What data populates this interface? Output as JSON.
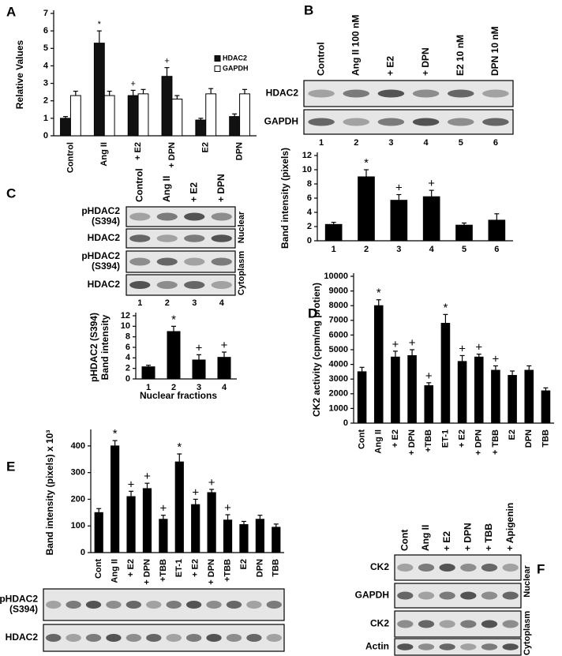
{
  "panel_labels": [
    "A",
    "B",
    "C",
    "D",
    "E",
    "F"
  ],
  "chart_data": [
    {
      "type": "bar",
      "y_label": "Relative Values",
      "categories": [
        "Control",
        "Ang II",
        "+ E2",
        "+ DPN",
        "E2",
        "DPN"
      ],
      "series": [
        {
          "name": "HDAC2",
          "color": "#111111",
          "values": [
            1,
            5.3,
            2.3,
            3.4,
            0.9,
            1.1
          ],
          "errors": [
            0.1,
            0.7,
            0.3,
            0.5,
            0.1,
            0.15
          ],
          "annotations": [
            null,
            "*",
            "+",
            "+",
            null,
            null
          ]
        },
        {
          "name": "GAPDH",
          "color": "#ffffff",
          "values": [
            2.3,
            2.3,
            2.4,
            2.1,
            2.4,
            2.4
          ],
          "errors": [
            0.25,
            0.25,
            0.25,
            0.2,
            0.3,
            0.25
          ],
          "annotations": [
            null,
            null,
            null,
            null,
            null,
            null
          ]
        }
      ],
      "ylim": [
        0,
        7
      ],
      "yticks": [
        0,
        1,
        2,
        3,
        4,
        5,
        6,
        7
      ]
    },
    {
      "type": "bar",
      "y_label": "Band intensity (pixels)",
      "categories": [
        "1",
        "2",
        "3",
        "4",
        "5",
        "6"
      ],
      "series": [
        {
          "color": "#000000",
          "values": [
            2.3,
            9,
            5.7,
            6.2,
            2.2,
            2.9
          ],
          "errors": [
            0.3,
            1,
            0.8,
            0.9,
            0.3,
            0.9
          ],
          "annotations": [
            null,
            "*",
            "+",
            "+",
            null,
            null
          ]
        }
      ],
      "ylim": [
        0,
        12
      ],
      "yticks": [
        0,
        2,
        4,
        6,
        8,
        10,
        12
      ]
    },
    {
      "type": "bar",
      "y_label": [
        "pHDAC2 (S394)",
        "Band intensity"
      ],
      "x_label": "Nuclear fractions",
      "categories": [
        "1",
        "2",
        "3",
        "4"
      ],
      "series": [
        {
          "color": "#000000",
          "values": [
            2.3,
            9,
            3.6,
            4.1
          ],
          "errors": [
            0.3,
            1,
            1,
            1
          ],
          "annotations": [
            null,
            "*",
            "+",
            "+"
          ]
        }
      ],
      "ylim": [
        0,
        12
      ],
      "yticks": [
        0,
        2,
        4,
        6,
        8,
        10,
        12
      ]
    },
    {
      "type": "bar",
      "y_label": "CK2 activity (cpm/mg protien)",
      "categories": [
        "Cont",
        "Ang II",
        "+ E2",
        "+ DPN",
        "+TBB",
        "ET-1",
        "+ E2",
        "+ DPN",
        "+ TBB",
        "E2",
        "DPN",
        "TBB"
      ],
      "series": [
        {
          "color": "#000000",
          "values": [
            3500,
            8000,
            4500,
            4600,
            2550,
            6800,
            4200,
            4500,
            3600,
            3250,
            3600,
            2200
          ],
          "errors": [
            300,
            400,
            400,
            400,
            200,
            600,
            400,
            200,
            300,
            300,
            300,
            200
          ],
          "annotations": [
            null,
            "*",
            "+",
            "+",
            "+",
            "*",
            "+",
            "+",
            "+",
            null,
            null,
            null
          ]
        }
      ],
      "ylim": [
        0,
        10000
      ],
      "yticks": [
        0,
        1000,
        2000,
        3000,
        4000,
        5000,
        6000,
        7000,
        8000,
        9000,
        10000
      ]
    },
    {
      "type": "bar",
      "y_label": "Band intensity (pixels) x 10³",
      "categories": [
        "Cont",
        "Ang II",
        "+ E2",
        "+ DPN",
        "+TBB",
        "ET-1",
        "+ E2",
        "+ DPN",
        "+TBB",
        "E2",
        "DPN",
        "TBB"
      ],
      "series": [
        {
          "color": "#000000",
          "values": [
            150,
            400,
            210,
            240,
            125,
            340,
            180,
            225,
            122,
            105,
            125,
            95
          ],
          "errors": [
            15,
            20,
            20,
            20,
            15,
            30,
            20,
            12,
            20,
            12,
            15,
            12
          ],
          "annotations": [
            null,
            "*",
            "+",
            "+",
            "+",
            "*",
            "+",
            "+",
            "+",
            null,
            null,
            null
          ]
        }
      ],
      "ylim": [
        0,
        450
      ],
      "yticks": [
        0,
        100,
        200,
        300,
        400
      ]
    }
  ],
  "blots": {
    "B": {
      "lanes": [
        "Control",
        "Ang II 100 nM",
        "+ E2",
        "+ DPN",
        "E2 10 nM",
        "DPN 10 nM"
      ],
      "rows": [
        "HDAC2",
        "GAPDH"
      ],
      "lane_numbers": [
        "1",
        "2",
        "3",
        "4",
        "5",
        "6"
      ]
    },
    "C": {
      "lanes": [
        "Control",
        "Ang II",
        "+ E2",
        "+ DPN"
      ],
      "rows": [
        [
          "pHDAC2",
          "(S394)"
        ],
        "HDAC2",
        [
          "pHDAC2",
          "(S394)"
        ],
        "HDAC2"
      ],
      "groups": [
        "Nuclear",
        "Cytoplasm"
      ],
      "lane_numbers": [
        "1",
        "2",
        "3",
        "4"
      ]
    },
    "E": {
      "rows": [
        [
          "pHDAC2",
          "(S394)"
        ],
        "HDAC2"
      ]
    },
    "F": {
      "lanes": [
        "Cont",
        "Ang II",
        "+ E2",
        "+ DPN",
        "+ TBB",
        "+ Apigenin"
      ],
      "rows": [
        "CK2",
        "GAPDH",
        "CK2",
        "Actin"
      ],
      "groups": [
        "Nuclear",
        "Cytoplasm"
      ]
    }
  }
}
